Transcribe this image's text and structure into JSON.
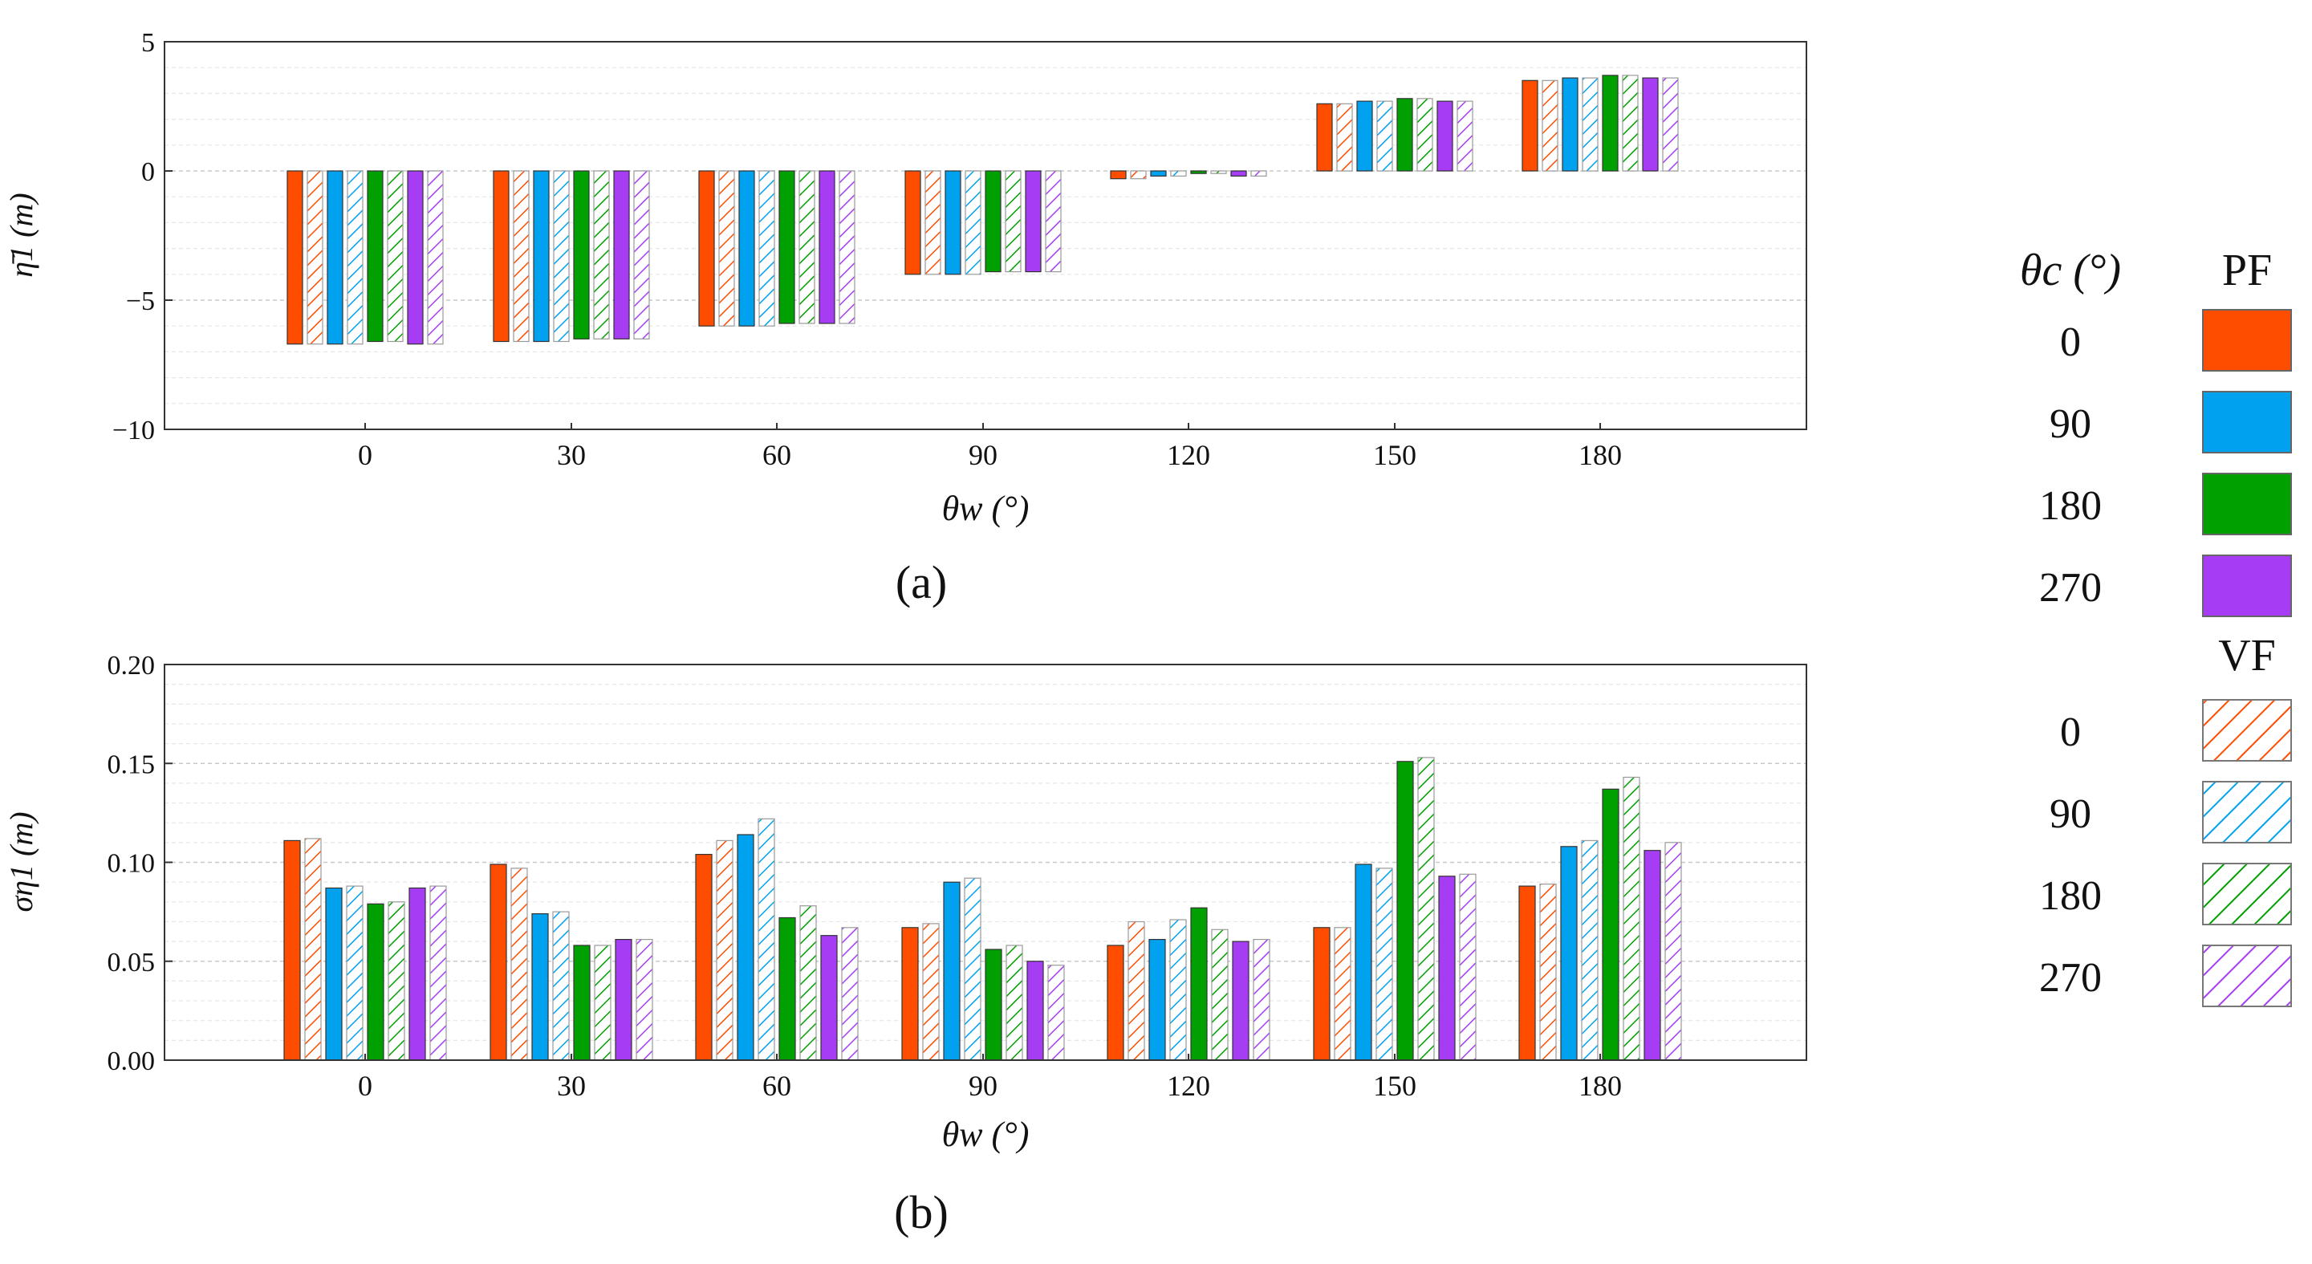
{
  "colors": {
    "theta_c_0": "#FF4D00",
    "theta_c_90": "#00A2F0",
    "theta_c_180": "#00A000",
    "theta_c_270": "#A63DF5",
    "axis": "#333333",
    "grid": "#d6d6d6"
  },
  "legend": {
    "col_header": "θc (°)",
    "pf_header": "PF",
    "vf_header": "VF",
    "pf_items": [
      {
        "label": "0",
        "color_key": "theta_c_0"
      },
      {
        "label": "90",
        "color_key": "theta_c_90"
      },
      {
        "label": "180",
        "color_key": "theta_c_180"
      },
      {
        "label": "270",
        "color_key": "theta_c_270"
      }
    ],
    "vf_items": [
      {
        "label": "0",
        "color_key": "theta_c_0"
      },
      {
        "label": "90",
        "color_key": "theta_c_90"
      },
      {
        "label": "180",
        "color_key": "theta_c_180"
      },
      {
        "label": "270",
        "color_key": "theta_c_270"
      }
    ]
  },
  "chart_data": [
    {
      "type": "bar",
      "panel_label": "(a)",
      "ylabel": "η̄1 (m)",
      "xlabel": "θw (°)",
      "categories": [
        "0",
        "30",
        "60",
        "90",
        "120",
        "150",
        "180"
      ],
      "ylim": [
        -10,
        5
      ],
      "yticks": [
        -10,
        -5,
        0,
        5
      ],
      "ytick_labels": [
        "−10",
        "−5",
        "0",
        "5"
      ],
      "grid": true,
      "series": [
        {
          "name": "PF 0",
          "model": "PF",
          "theta_c": "0",
          "values": [
            -6.7,
            -6.6,
            -6.0,
            -4.0,
            -0.3,
            2.6,
            3.5
          ]
        },
        {
          "name": "VF 0",
          "model": "VF",
          "theta_c": "0",
          "values": [
            -6.7,
            -6.6,
            -6.0,
            -4.0,
            -0.3,
            2.6,
            3.5
          ]
        },
        {
          "name": "PF 90",
          "model": "PF",
          "theta_c": "90",
          "values": [
            -6.7,
            -6.6,
            -6.0,
            -4.0,
            -0.2,
            2.7,
            3.6
          ]
        },
        {
          "name": "VF 90",
          "model": "VF",
          "theta_c": "90",
          "values": [
            -6.7,
            -6.6,
            -6.0,
            -4.0,
            -0.2,
            2.7,
            3.6
          ]
        },
        {
          "name": "PF 180",
          "model": "PF",
          "theta_c": "180",
          "values": [
            -6.6,
            -6.5,
            -5.9,
            -3.9,
            -0.1,
            2.8,
            3.7
          ]
        },
        {
          "name": "VF 180",
          "model": "VF",
          "theta_c": "180",
          "values": [
            -6.6,
            -6.5,
            -5.9,
            -3.9,
            -0.1,
            2.8,
            3.7
          ]
        },
        {
          "name": "PF 270",
          "model": "PF",
          "theta_c": "270",
          "values": [
            -6.7,
            -6.5,
            -5.9,
            -3.9,
            -0.2,
            2.7,
            3.6
          ]
        },
        {
          "name": "VF 270",
          "model": "VF",
          "theta_c": "270",
          "values": [
            -6.7,
            -6.5,
            -5.9,
            -3.9,
            -0.2,
            2.7,
            3.6
          ]
        }
      ]
    },
    {
      "type": "bar",
      "panel_label": "(b)",
      "ylabel": "ση1 (m)",
      "xlabel": "θw (°)",
      "categories": [
        "0",
        "30",
        "60",
        "90",
        "120",
        "150",
        "180"
      ],
      "ylim": [
        0.0,
        0.2
      ],
      "yticks": [
        0.0,
        0.05,
        0.1,
        0.15,
        0.2
      ],
      "ytick_labels": [
        "0.00",
        "0.05",
        "0.10",
        "0.15",
        "0.20"
      ],
      "grid": true,
      "series": [
        {
          "name": "PF 0",
          "model": "PF",
          "theta_c": "0",
          "values": [
            0.111,
            0.099,
            0.104,
            0.067,
            0.058,
            0.067,
            0.088
          ]
        },
        {
          "name": "VF 0",
          "model": "VF",
          "theta_c": "0",
          "values": [
            0.112,
            0.097,
            0.111,
            0.069,
            0.07,
            0.067,
            0.089
          ]
        },
        {
          "name": "PF 90",
          "model": "PF",
          "theta_c": "90",
          "values": [
            0.087,
            0.074,
            0.114,
            0.09,
            0.061,
            0.099,
            0.108
          ]
        },
        {
          "name": "VF 90",
          "model": "VF",
          "theta_c": "90",
          "values": [
            0.088,
            0.075,
            0.122,
            0.092,
            0.071,
            0.097,
            0.111
          ]
        },
        {
          "name": "PF 180",
          "model": "PF",
          "theta_c": "180",
          "values": [
            0.079,
            0.058,
            0.072,
            0.056,
            0.077,
            0.151,
            0.137
          ]
        },
        {
          "name": "VF 180",
          "model": "VF",
          "theta_c": "180",
          "values": [
            0.08,
            0.058,
            0.078,
            0.058,
            0.066,
            0.153,
            0.143
          ]
        },
        {
          "name": "PF 270",
          "model": "PF",
          "theta_c": "270",
          "values": [
            0.087,
            0.061,
            0.063,
            0.05,
            0.06,
            0.093,
            0.106
          ]
        },
        {
          "name": "VF 270",
          "model": "VF",
          "theta_c": "270",
          "values": [
            0.088,
            0.061,
            0.067,
            0.048,
            0.061,
            0.094,
            0.11
          ]
        }
      ]
    }
  ]
}
